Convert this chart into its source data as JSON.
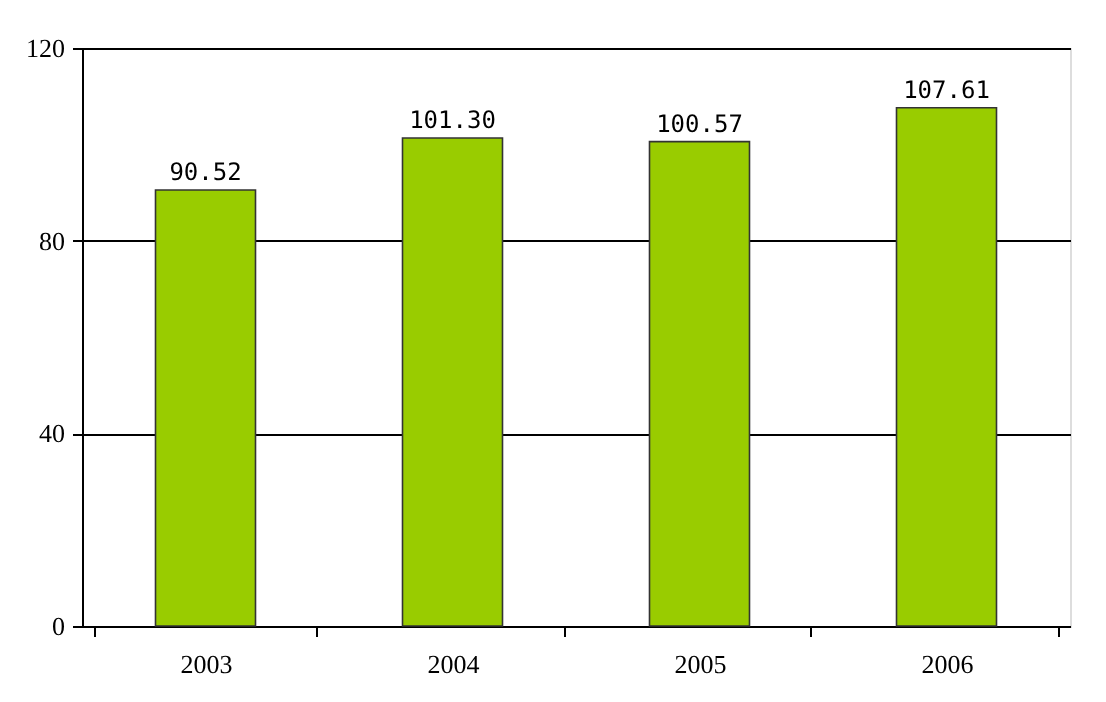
{
  "chart_data": {
    "type": "bar",
    "categories": [
      "2003",
      "2004",
      "2005",
      "2006"
    ],
    "values": [
      90.52,
      101.3,
      100.57,
      107.61
    ],
    "value_labels": [
      "90.52",
      "101.30",
      "100.57",
      "107.61"
    ],
    "color": "#99cc00",
    "ylim": [
      0,
      120
    ],
    "yticks": [
      0,
      40,
      80,
      120
    ],
    "grid": "y"
  }
}
